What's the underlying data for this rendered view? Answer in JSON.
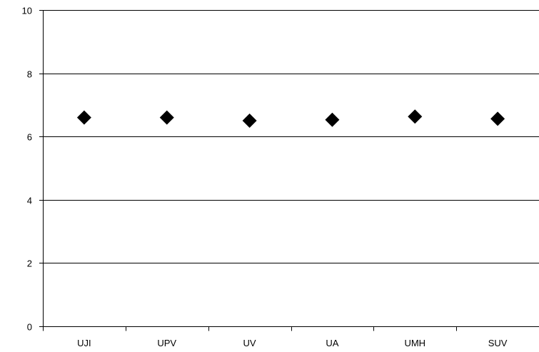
{
  "chart_data": {
    "type": "scatter",
    "title": "",
    "xlabel": "",
    "ylabel": "",
    "categories": [
      "UJI",
      "UPV",
      "UV",
      "UA",
      "UMH",
      "SUV"
    ],
    "values": [
      6.6,
      6.6,
      6.5,
      6.53,
      6.63,
      6.56
    ],
    "ylim": [
      0,
      10
    ],
    "yticks": [
      "0",
      "2",
      "4",
      "6",
      "8",
      "10"
    ],
    "grid": true,
    "legend": "none",
    "marker": "diamond",
    "colors": {
      "marker": "#000000",
      "grid": "#000000",
      "axis": "#000000",
      "background": "#ffffff"
    }
  }
}
